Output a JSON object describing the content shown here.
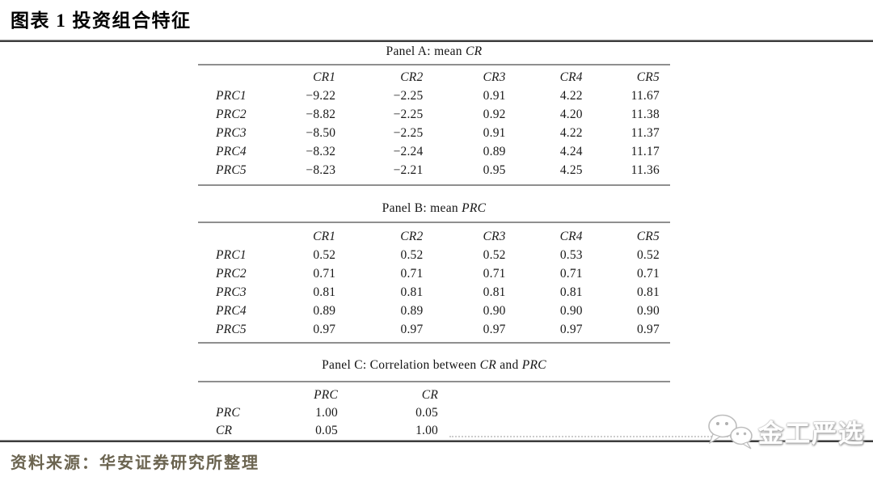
{
  "header": {
    "title": "图表 1 投资组合特征"
  },
  "footer": {
    "source": "资料来源：华安证券研究所整理",
    "watermark": "金工严选"
  },
  "colors": {
    "source_text": "#6b6450",
    "heavy_rule": "#3d3d3d",
    "table_rule": "#8f8f8f"
  },
  "table": {
    "panels": [
      {
        "id": "panel-a",
        "title_parts": [
          {
            "text": "Panel A: mean "
          },
          {
            "text": "CR",
            "italic": true
          }
        ],
        "columns": [
          "CR1",
          "CR2",
          "CR3",
          "CR4",
          "CR5"
        ],
        "rows": [
          {
            "label": "PRC1",
            "values": [
              "−9.22",
              "−2.25",
              "0.91",
              "4.22",
              "11.67"
            ]
          },
          {
            "label": "PRC2",
            "values": [
              "−8.82",
              "−2.25",
              "0.92",
              "4.20",
              "11.38"
            ]
          },
          {
            "label": "PRC3",
            "values": [
              "−8.50",
              "−2.25",
              "0.91",
              "4.22",
              "11.37"
            ]
          },
          {
            "label": "PRC4",
            "values": [
              "−8.32",
              "−2.24",
              "0.89",
              "4.24",
              "11.17"
            ]
          },
          {
            "label": "PRC5",
            "values": [
              "−8.23",
              "−2.21",
              "0.95",
              "4.25",
              "11.36"
            ]
          }
        ]
      },
      {
        "id": "panel-b",
        "title_parts": [
          {
            "text": "Panel B: mean "
          },
          {
            "text": "PRC",
            "italic": true
          }
        ],
        "columns": [
          "CR1",
          "CR2",
          "CR3",
          "CR4",
          "CR5"
        ],
        "rows": [
          {
            "label": "PRC1",
            "values": [
              "0.52",
              "0.52",
              "0.52",
              "0.53",
              "0.52"
            ]
          },
          {
            "label": "PRC2",
            "values": [
              "0.71",
              "0.71",
              "0.71",
              "0.71",
              "0.71"
            ]
          },
          {
            "label": "PRC3",
            "values": [
              "0.81",
              "0.81",
              "0.81",
              "0.81",
              "0.81"
            ]
          },
          {
            "label": "PRC4",
            "values": [
              "0.89",
              "0.89",
              "0.90",
              "0.90",
              "0.90"
            ]
          },
          {
            "label": "PRC5",
            "values": [
              "0.97",
              "0.97",
              "0.97",
              "0.97",
              "0.97"
            ]
          }
        ]
      },
      {
        "id": "panel-c",
        "title_parts": [
          {
            "text": "Panel C: Correlation between "
          },
          {
            "text": "CR",
            "italic": true
          },
          {
            "text": " and "
          },
          {
            "text": "PRC",
            "italic": true
          }
        ],
        "columns": [
          "PRC",
          "CR"
        ],
        "rows": [
          {
            "label": "PRC",
            "values": [
              "1.00",
              "0.05"
            ]
          },
          {
            "label": "CR",
            "values": [
              "0.05",
              "1.00"
            ]
          }
        ]
      }
    ]
  }
}
